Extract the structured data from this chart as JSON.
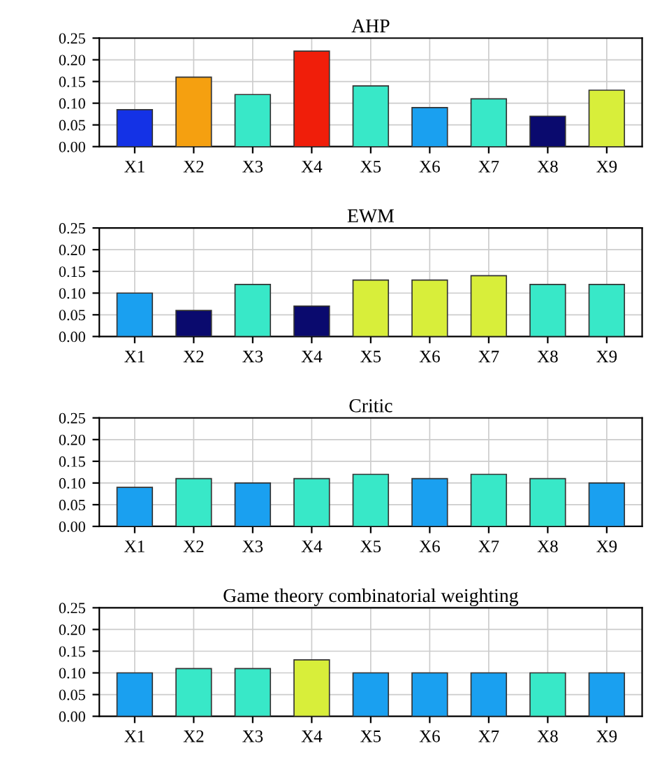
{
  "chart_data": [
    {
      "type": "bar",
      "title": "AHP",
      "categories": [
        "X1",
        "X2",
        "X3",
        "X4",
        "X5",
        "X6",
        "X7",
        "X8",
        "X9"
      ],
      "values": [
        0.085,
        0.16,
        0.12,
        0.22,
        0.14,
        0.09,
        0.11,
        0.07,
        0.13
      ],
      "colors": [
        "#1432e6",
        "#f5a010",
        "#38e8c8",
        "#f01e0a",
        "#38e8c8",
        "#1aa0f0",
        "#38e8c8",
        "#0a0a6e",
        "#d8ee3a"
      ],
      "ylim": [
        0,
        0.25
      ],
      "yticks": [
        {
          "value": 0,
          "label": "0.00"
        },
        0.05,
        {
          "value": 0.1,
          "label": "0.10"
        },
        0.15,
        {
          "value": 0.2,
          "label": "0.20"
        },
        0.25
      ],
      "grid": true
    },
    {
      "type": "bar",
      "title": "EWM",
      "categories": [
        "X1",
        "X2",
        "X3",
        "X4",
        "X5",
        "X6",
        "X7",
        "X8",
        "X9"
      ],
      "values": [
        0.1,
        0.06,
        0.12,
        0.07,
        0.13,
        0.13,
        0.14,
        0.12,
        0.12
      ],
      "colors": [
        "#1aa0f0",
        "#0a0a6e",
        "#38e8c8",
        "#0a0a6e",
        "#d8ee3a",
        "#d8ee3a",
        "#d8ee3a",
        "#38e8c8",
        "#38e8c8"
      ],
      "ylim": [
        0,
        0.25
      ],
      "yticks": [
        {
          "value": 0,
          "label": "0.00"
        },
        0.05,
        {
          "value": 0.1,
          "label": "0.10"
        },
        0.15,
        {
          "value": 0.2,
          "label": "0.20"
        },
        0.25
      ],
      "grid": true
    },
    {
      "type": "bar",
      "title": "Critic",
      "categories": [
        "X1",
        "X2",
        "X3",
        "X4",
        "X5",
        "X6",
        "X7",
        "X8",
        "X9"
      ],
      "values": [
        0.09,
        0.11,
        0.1,
        0.11,
        0.12,
        0.11,
        0.12,
        0.11,
        0.1
      ],
      "colors": [
        "#1aa0f0",
        "#38e8c8",
        "#1aa0f0",
        "#38e8c8",
        "#38e8c8",
        "#1aa0f0",
        "#38e8c8",
        "#38e8c8",
        "#1aa0f0"
      ],
      "ylim": [
        0,
        0.25
      ],
      "yticks": [
        {
          "value": 0,
          "label": "0.00"
        },
        0.05,
        {
          "value": 0.1,
          "label": "0.10"
        },
        0.15,
        {
          "value": 0.2,
          "label": "0.20"
        },
        0.25
      ],
      "grid": true
    },
    {
      "type": "bar",
      "title": "Game theory combinatorial weighting",
      "categories": [
        "X1",
        "X2",
        "X3",
        "X4",
        "X5",
        "X6",
        "X7",
        "X8",
        "X9"
      ],
      "values": [
        0.1,
        0.11,
        0.11,
        0.13,
        0.1,
        0.1,
        0.1,
        0.1,
        0.1
      ],
      "colors": [
        "#1aa0f0",
        "#38e8c8",
        "#38e8c8",
        "#d8ee3a",
        "#1aa0f0",
        "#1aa0f0",
        "#1aa0f0",
        "#38e8c8",
        "#1aa0f0"
      ],
      "ylim": [
        0,
        0.25
      ],
      "yticks": [
        {
          "value": 0,
          "label": "0.00"
        },
        0.05,
        {
          "value": 0.1,
          "label": "0.10"
        },
        0.15,
        {
          "value": 0.2,
          "label": "0.20"
        },
        0.25
      ],
      "grid": true
    }
  ]
}
